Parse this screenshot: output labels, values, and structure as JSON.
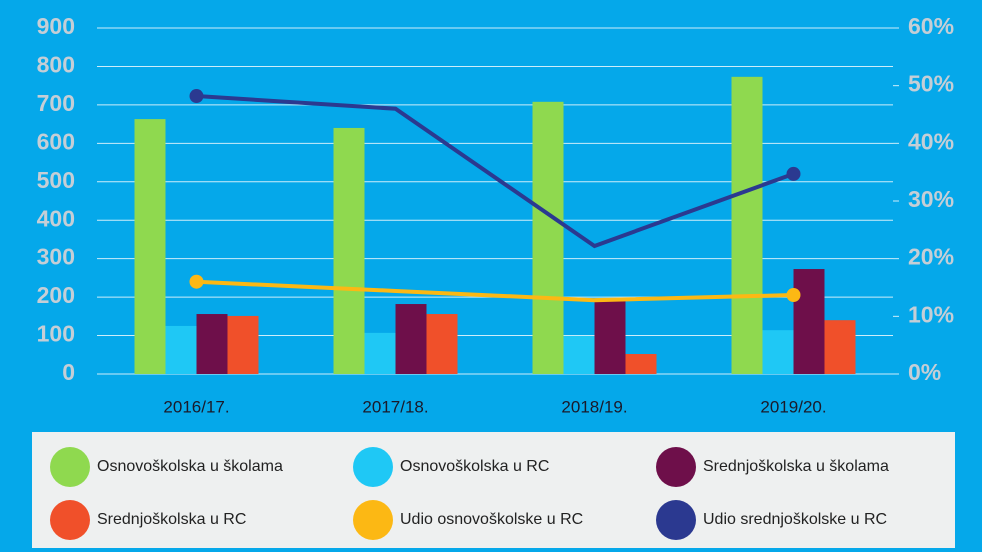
{
  "chart_data": {
    "type": "bar_line",
    "categories": [
      "2016/17.",
      "2017/18.",
      "2018/19.",
      "2019/20."
    ],
    "series": [
      {
        "name": "Osnovoškolska u školama",
        "color": "#8fd94f",
        "type": "bar",
        "values": [
          663,
          640,
          708,
          773
        ]
      },
      {
        "name": "Osnovoškolska u RC",
        "color": "#1fc8f5",
        "type": "bar",
        "values": [
          125,
          107,
          99,
          114
        ]
      },
      {
        "name": "Srednjoškolska u školama",
        "color": "#6e0f4a",
        "type": "bar",
        "values": [
          156,
          182,
          193,
          273
        ]
      },
      {
        "name": "Srednjoškolska u RC",
        "color": "#f0502a",
        "type": "bar",
        "values": [
          151,
          156,
          52,
          140
        ]
      },
      {
        "name": "Udio osnovoškolske u RC",
        "color": "#fcb814",
        "type": "line",
        "axis": "y2",
        "values": [
          16.0,
          14.4,
          12.8,
          13.7
        ]
      },
      {
        "name": "Udio srednjoškolske u RC",
        "color": "#2b3990",
        "type": "line",
        "axis": "y2",
        "values": [
          48.2,
          46.0,
          22.2,
          34.7
        ]
      }
    ],
    "ylim": [
      0,
      900
    ],
    "yticks": [
      0,
      100,
      200,
      300,
      400,
      500,
      600,
      700,
      800,
      900
    ],
    "y2lim": [
      0,
      60
    ],
    "y2ticks": [
      {
        "value": 0,
        "label": "0%"
      },
      {
        "value": 10,
        "label": "10%"
      },
      {
        "value": 20,
        "label": "20%"
      },
      {
        "value": 30,
        "label": "30%"
      },
      {
        "value": 40,
        "label": "40%"
      },
      {
        "value": 50,
        "label": "50%"
      },
      {
        "value": 60,
        "label": "60%"
      }
    ],
    "grid": true
  }
}
